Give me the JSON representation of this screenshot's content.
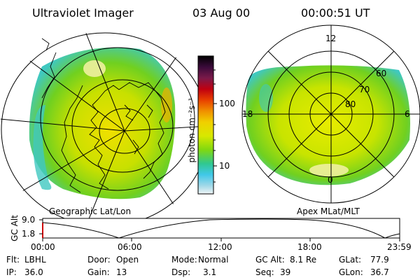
{
  "header": {
    "instrument": "Ultraviolet Imager",
    "date": "03 Aug 00",
    "time": "00:00:51 UT"
  },
  "left_panel": {
    "label": "Geographic Lat/Lon"
  },
  "right_panel": {
    "label": "Apex MLat/MLT",
    "mlt_labels": [
      "12",
      "18",
      "6",
      "0"
    ],
    "lat_labels": [
      "60",
      "70",
      "80"
    ]
  },
  "colorbar": {
    "unit_label": "photon cm⁻²s⁻¹",
    "ticks": [
      "100",
      "10"
    ],
    "colors": [
      "#000000",
      "#2a0a3a",
      "#5a1a5a",
      "#8b0a2a",
      "#c80000",
      "#e03a00",
      "#f08a00",
      "#f0c000",
      "#e8e800",
      "#b8e000",
      "#60d000",
      "#30c8a0",
      "#40c8e8",
      "#a0d8e8",
      "#e8f0f0"
    ]
  },
  "timeline": {
    "ylabel": "GC Alt",
    "y_ticks": [
      "9.0",
      "1.8"
    ],
    "x_ticks": [
      "00:00",
      "06:00",
      "12:00",
      "18:00",
      "23:59"
    ]
  },
  "info": {
    "flt_label": "Flt:",
    "flt_value": "LBHL",
    "door_label": "Door:",
    "door_value": "Open",
    "mode_label": "Mode:",
    "mode_value": "Normal",
    "gcalt_label": "GC Alt:",
    "gcalt_value": "8.1 Re",
    "glat_label": "GLat:",
    "glat_value": "77.9",
    "ip_label": "IP:",
    "ip_value": "36.0",
    "gain_label": "Gain:",
    "gain_value": "13",
    "dsp_label": "Dsp:",
    "dsp_value": "3.1",
    "seq_label": "Seq:",
    "seq_value": "39",
    "glon_label": "GLon:",
    "glon_value": "36.7"
  }
}
